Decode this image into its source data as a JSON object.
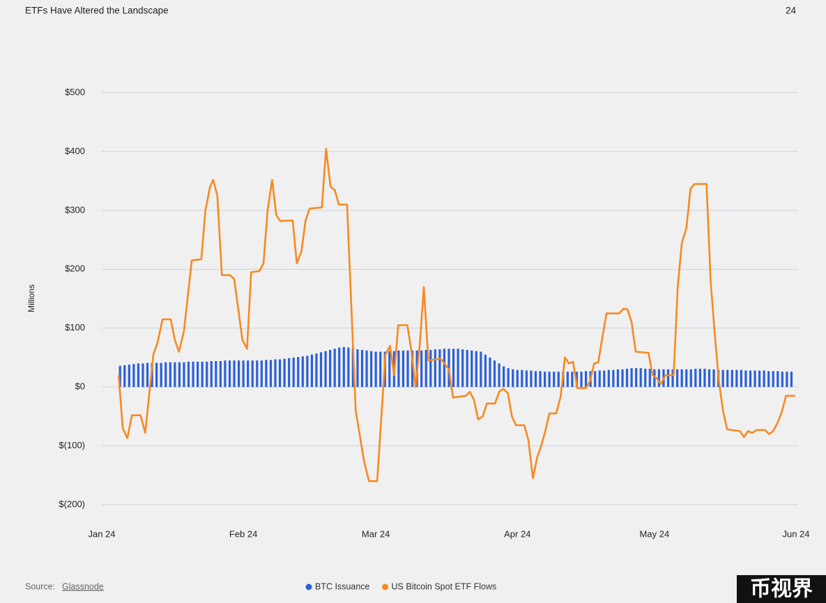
{
  "header": {
    "title": "ETFs Have Altered the Landscape",
    "page_number": "24"
  },
  "footer": {
    "source_label": "Source:",
    "source": "Glassnode"
  },
  "watermark": "币视界",
  "chart_data": {
    "type": "combo",
    "ylabel": "Millions",
    "xlim": [
      0,
      152
    ],
    "xticks": [
      {
        "value": 0,
        "label": "Jan 24"
      },
      {
        "value": 31,
        "label": "Feb 24"
      },
      {
        "value": 60,
        "label": "Mar 24"
      },
      {
        "value": 91,
        "label": "Apr 24"
      },
      {
        "value": 121,
        "label": "May 24"
      },
      {
        "value": 152,
        "label": "Jun 24"
      }
    ],
    "ylim": [
      -200,
      500
    ],
    "yticks": [
      {
        "value": -200,
        "label": "$(200)"
      },
      {
        "value": -100,
        "label": "$(100)"
      },
      {
        "value": 0,
        "label": "$0"
      },
      {
        "value": 100,
        "label": "$100"
      },
      {
        "value": 200,
        "label": "$200"
      },
      {
        "value": 300,
        "label": "$300"
      },
      {
        "value": 400,
        "label": "$400"
      },
      {
        "value": 500,
        "label": "$500"
      }
    ],
    "grid": true,
    "legend": "bottom",
    "series": [
      {
        "name": "BTC Issuance",
        "type": "bar",
        "color": "#2b5fd9",
        "x": [
          4,
          5,
          6,
          7,
          8,
          9,
          10,
          11,
          12,
          13,
          14,
          15,
          16,
          17,
          18,
          19,
          20,
          21,
          22,
          23,
          24,
          25,
          26,
          27,
          28,
          29,
          30,
          31,
          32,
          33,
          34,
          35,
          36,
          37,
          38,
          39,
          40,
          41,
          42,
          43,
          44,
          45,
          46,
          47,
          48,
          49,
          50,
          51,
          52,
          53,
          54,
          55,
          56,
          57,
          58,
          59,
          60,
          61,
          62,
          63,
          64,
          65,
          66,
          67,
          68,
          69,
          70,
          71,
          72,
          73,
          74,
          75,
          76,
          77,
          78,
          79,
          80,
          81,
          82,
          83,
          84,
          85,
          86,
          87,
          88,
          89,
          90,
          91,
          92,
          93,
          94,
          95,
          96,
          97,
          98,
          99,
          100,
          101,
          102,
          103,
          104,
          105,
          106,
          107,
          108,
          109,
          110,
          111,
          112,
          113,
          114,
          115,
          116,
          117,
          118,
          119,
          120,
          121,
          122,
          123,
          124,
          125,
          126,
          127,
          128,
          129,
          130,
          131,
          132,
          133,
          134,
          135,
          136,
          137,
          138,
          139,
          140,
          141,
          142,
          143,
          144,
          145,
          146,
          147,
          148,
          149,
          150,
          151
        ],
        "values": [
          36,
          37,
          38,
          39,
          40,
          40,
          41,
          41,
          41,
          41,
          42,
          42,
          42,
          42,
          42,
          43,
          43,
          43,
          43,
          43,
          44,
          44,
          44,
          45,
          45,
          45,
          45,
          45,
          45,
          45,
          45,
          45,
          46,
          46,
          47,
          47,
          48,
          49,
          50,
          51,
          52,
          53,
          55,
          57,
          59,
          61,
          63,
          65,
          67,
          68,
          67,
          66,
          64,
          63,
          62,
          61,
          60,
          60,
          60,
          61,
          61,
          62,
          62,
          62,
          62,
          62,
          62,
          63,
          63,
          64,
          64,
          65,
          65,
          65,
          65,
          64,
          63,
          62,
          61,
          60,
          55,
          50,
          45,
          40,
          35,
          32,
          30,
          29,
          29,
          28,
          28,
          27,
          27,
          26,
          26,
          26,
          26,
          26,
          26,
          26,
          26,
          26,
          27,
          27,
          27,
          28,
          28,
          29,
          29,
          30,
          30,
          31,
          32,
          32,
          32,
          31,
          31,
          30,
          30,
          30,
          30,
          30,
          30,
          30,
          30,
          30,
          31,
          31,
          31,
          30,
          30,
          29,
          29,
          29,
          29,
          29,
          29,
          28,
          28,
          28,
          28,
          28,
          27,
          27,
          27,
          26,
          26,
          26
        ]
      },
      {
        "name": "US Bitcoin Spot ETF Flows",
        "type": "line",
        "color": "#f7891f",
        "x": [
          3.7,
          4.6,
          5.6,
          6.6,
          8.5,
          9.5,
          11.3,
          12.2,
          13.3,
          15.1,
          16.0,
          16.9,
          18.0,
          19.7,
          21.8,
          22.7,
          23.7,
          24.4,
          25.3,
          26.3,
          28.1,
          29.0,
          30.8,
          31.8,
          32.7,
          34.5,
          35.4,
          36.3,
          37.3,
          38.2,
          39.1,
          41.8,
          42.7,
          43.7,
          44.6,
          45.5,
          48.2,
          49.1,
          50.1,
          51.0,
          51.9,
          53.7,
          55.6,
          57.4,
          58.5,
          60.3,
          62.1,
          63.1,
          64.0,
          64.9,
          66.9,
          67.8,
          68.7,
          69.6,
          70.5,
          71.5,
          74.2,
          76.0,
          76.9,
          79.7,
          80.6,
          81.5,
          82.4,
          83.4,
          84.3,
          86.1,
          87.0,
          87.9,
          88.9,
          89.8,
          90.7,
          92.5,
          93.4,
          94.4,
          95.3,
          96.2,
          97.1,
          98.0,
          99.5,
          100.5,
          101.4,
          102.3,
          103.2,
          104.1,
          106.0,
          106.9,
          107.8,
          108.7,
          109.6,
          110.5,
          113.3,
          114.2,
          115.1,
          116.0,
          116.9,
          119.7,
          120.6,
          121.5,
          122.4,
          123.4,
          125.2,
          126.1,
          127.0,
          128.0,
          128.9,
          129.8,
          132.4,
          133.3,
          134.2,
          135.1,
          136.0,
          136.9,
          139.7,
          140.6,
          141.5,
          142.4,
          143.4,
          145.2,
          146.1,
          147.0,
          148.0,
          148.9,
          149.8,
          151.8
        ],
        "values": [
          20,
          -70,
          -87,
          -48,
          -48,
          -78,
          55,
          75,
          115,
          115,
          80,
          60,
          95,
          215,
          217,
          300,
          340,
          352,
          325,
          190,
          190,
          183,
          80,
          65,
          195,
          197,
          210,
          300,
          352,
          292,
          282,
          283,
          210,
          230,
          282,
          303,
          305,
          405,
          340,
          335,
          310,
          310,
          -40,
          -125,
          -160,
          -160,
          55,
          70,
          20,
          105,
          105,
          60,
          0,
          70,
          170,
          45,
          48,
          30,
          -18,
          -15,
          -8,
          -22,
          -55,
          -50,
          -28,
          -28,
          -8,
          -3,
          -10,
          -50,
          -65,
          -65,
          -90,
          -155,
          -120,
          -100,
          -75,
          -45,
          -45,
          -15,
          50,
          40,
          43,
          -2,
          -2,
          10,
          40,
          42,
          85,
          125,
          125,
          133,
          132,
          110,
          60,
          58,
          20,
          15,
          5,
          20,
          20,
          170,
          245,
          270,
          337,
          345,
          345,
          180,
          90,
          10,
          -40,
          -72,
          -75,
          -85,
          -75,
          -78,
          -73,
          -73,
          -80,
          -75,
          -60,
          -42,
          -15,
          -15
        ]
      }
    ]
  }
}
